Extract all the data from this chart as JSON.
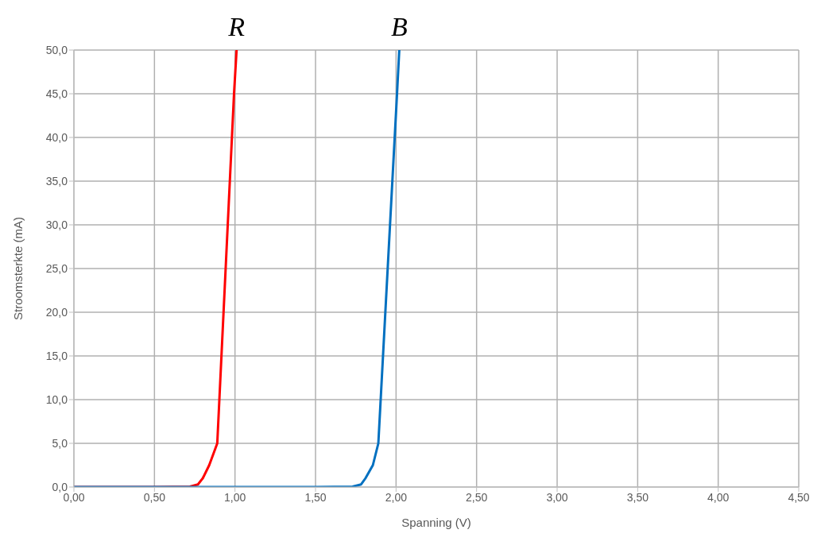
{
  "chart_data": {
    "type": "line",
    "xlabel": "Spanning (V)",
    "ylabel": "Stroomsterkte  (mA)",
    "xlim": [
      0,
      4.5
    ],
    "xticks": [
      {
        "value": 0,
        "label": "0,00"
      },
      {
        "value": 0.5,
        "label": "0,50"
      },
      {
        "value": 1,
        "label": "1,00"
      },
      {
        "value": 1.5,
        "label": "1,50"
      },
      {
        "value": 2,
        "label": "2,00"
      },
      {
        "value": 2.5,
        "label": "2,50"
      },
      {
        "value": 3,
        "label": "3,00"
      },
      {
        "value": 3.5,
        "label": "3,50"
      },
      {
        "value": 4,
        "label": "4,00"
      },
      {
        "value": 4.5,
        "label": "4,50"
      }
    ],
    "ylim": [
      0,
      50
    ],
    "yticks": [
      {
        "value": 0,
        "label": "0,0"
      },
      {
        "value": 5,
        "label": "5,0"
      },
      {
        "value": 10,
        "label": "10,0"
      },
      {
        "value": 15,
        "label": "15,0"
      },
      {
        "value": 20,
        "label": "20,0"
      },
      {
        "value": 25,
        "label": "25,0"
      },
      {
        "value": 30,
        "label": "30,0"
      },
      {
        "value": 35,
        "label": "35,0"
      },
      {
        "value": 40,
        "label": "40,0"
      },
      {
        "value": 45,
        "label": "45,0"
      },
      {
        "value": 50,
        "label": "50,0"
      }
    ],
    "grid": true,
    "legend": false,
    "marker": "none",
    "line_style": "solid",
    "series": [
      {
        "name": "R",
        "color": "#ff0000",
        "x": [
          0,
          0.5,
          0.72,
          0.77,
          0.8,
          0.84,
          0.89,
          0.994,
          1.01
        ],
        "values": [
          0,
          0,
          0.05,
          0.3,
          1,
          2.5,
          5,
          45,
          50
        ]
      },
      {
        "name": "B",
        "color": "#0070c0",
        "x": [
          0,
          1.5,
          1.73,
          1.783,
          1.81,
          1.856,
          1.89,
          2.006,
          2.02
        ],
        "values": [
          0,
          0,
          0.05,
          0.3,
          1,
          2.5,
          5,
          45,
          50
        ]
      }
    ]
  }
}
